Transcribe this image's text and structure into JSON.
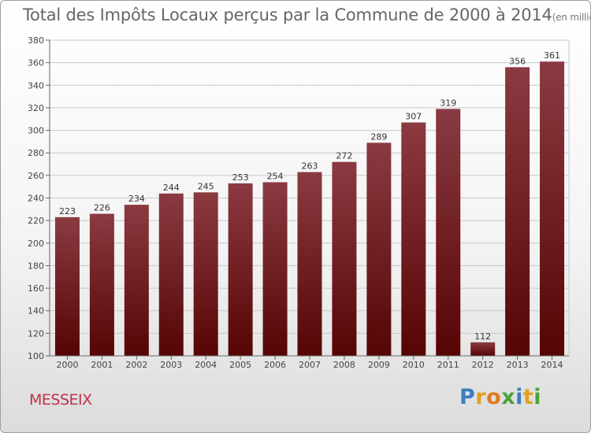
{
  "header": {
    "title": "Total des Impôts Locaux perçus par la Commune de 2000 à 2014",
    "unit": "(en milliers d'€)"
  },
  "footer": {
    "commune": "MESSEIX",
    "brand": "Proxiti"
  },
  "colors": {
    "bar_top": "#8b3a42",
    "bar_bottom": "#560404",
    "brand_p": "#3a7fc4",
    "brand_r": "#e0a020",
    "brand_o": "#e07a20",
    "brand_x": "#4ba23a",
    "brand_i": "#3a7fc4",
    "brand_t": "#e0a020",
    "brand_i2": "#4ba23a"
  },
  "chart_data": {
    "type": "bar",
    "title": "Total des Impôts Locaux perçus par la Commune de 2000 à 2014",
    "ylabel": "en milliers d'€",
    "xlabel": "",
    "categories": [
      "2000",
      "2001",
      "2002",
      "2003",
      "2004",
      "2005",
      "2006",
      "2007",
      "2008",
      "2009",
      "2010",
      "2011",
      "2012",
      "2013",
      "2014"
    ],
    "values": [
      223,
      226,
      234,
      244,
      245,
      253,
      254,
      263,
      272,
      289,
      307,
      319,
      112,
      356,
      361
    ],
    "ylim": [
      100,
      380
    ],
    "yticks": [
      100,
      120,
      140,
      160,
      180,
      200,
      220,
      240,
      260,
      280,
      300,
      320,
      340,
      360,
      380
    ],
    "grid": true
  }
}
